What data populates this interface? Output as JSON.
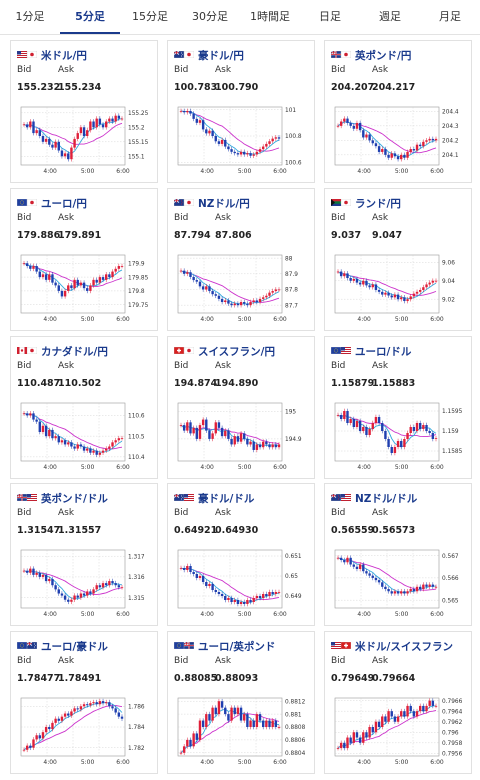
{
  "tabs": [
    {
      "label": "1分足",
      "active": false
    },
    {
      "label": "5分足",
      "active": true
    },
    {
      "label": "15分足",
      "active": false
    },
    {
      "label": "30分足",
      "active": false
    },
    {
      "label": "1時間足",
      "active": false
    },
    {
      "label": "日足",
      "active": false
    },
    {
      "label": "週足",
      "active": false
    },
    {
      "label": "月足",
      "active": false
    }
  ],
  "labels": {
    "bid": "Bid",
    "ask": "Ask"
  },
  "time_labels": [
    "4:00",
    "5:00",
    "6:00"
  ],
  "colors": {
    "up": "#e0203a",
    "down": "#1f3fb0",
    "ma_long": "#cc33cc",
    "ma_short": "#33aadd",
    "title": "#1a3a8c"
  },
  "pairs": [
    {
      "name": "米ドル/円",
      "bid": "155.232",
      "ask": "155.234",
      "flags": [
        "us",
        "jp"
      ],
      "yticks": [
        "155.25",
        "155.2",
        "155.15",
        "155.1"
      ],
      "range": [
        155.07,
        155.27
      ],
      "series": [
        155.21,
        155.2,
        155.22,
        155.18,
        155.19,
        155.17,
        155.15,
        155.16,
        155.14,
        155.13,
        155.15,
        155.12,
        155.1,
        155.11,
        155.09,
        155.13,
        155.16,
        155.18,
        155.2,
        155.17,
        155.19,
        155.22,
        155.2,
        155.23,
        155.21,
        155.2,
        155.22,
        155.23,
        155.22,
        155.24,
        155.23,
        155.23
      ]
    },
    {
      "name": "豪ドル/円",
      "bid": "100.783",
      "ask": "100.790",
      "flags": [
        "au",
        "jp"
      ],
      "yticks": [
        "101",
        "100.8",
        "100.6"
      ],
      "range": [
        100.58,
        101.02
      ],
      "series": [
        100.99,
        100.98,
        100.99,
        100.97,
        100.93,
        100.9,
        100.92,
        100.85,
        100.82,
        100.84,
        100.8,
        100.76,
        100.74,
        100.77,
        100.72,
        100.7,
        100.68,
        100.67,
        100.66,
        100.68,
        100.66,
        100.67,
        100.65,
        100.66,
        100.68,
        100.7,
        100.72,
        100.74,
        100.76,
        100.78,
        100.79,
        100.78
      ]
    },
    {
      "name": "英ポンド/円",
      "bid": "204.207",
      "ask": "204.217",
      "flags": [
        "gb",
        "jp"
      ],
      "yticks": [
        "204.4",
        "204.3",
        "204.2",
        "204.1"
      ],
      "range": [
        204.03,
        204.43
      ],
      "series": [
        204.3,
        204.33,
        204.35,
        204.32,
        204.3,
        204.28,
        204.32,
        204.27,
        204.22,
        204.24,
        204.2,
        204.18,
        204.16,
        204.12,
        204.14,
        204.1,
        204.08,
        204.11,
        204.09,
        204.07,
        204.1,
        204.08,
        204.12,
        204.14,
        204.13,
        204.17,
        204.16,
        204.19,
        204.2,
        204.21,
        204.2,
        204.21
      ]
    },
    {
      "name": "ユーロ/円",
      "bid": "179.886",
      "ask": "179.891",
      "flags": [
        "eu",
        "jp"
      ],
      "yticks": [
        "179.9",
        "179.85",
        "179.8",
        "179.75"
      ],
      "range": [
        179.72,
        179.93
      ],
      "series": [
        179.9,
        179.89,
        179.88,
        179.89,
        179.87,
        179.85,
        179.86,
        179.84,
        179.86,
        179.83,
        179.82,
        179.8,
        179.78,
        179.8,
        179.82,
        179.81,
        179.84,
        179.82,
        179.83,
        179.81,
        179.8,
        179.82,
        179.84,
        179.83,
        179.85,
        179.84,
        179.86,
        179.85,
        179.87,
        179.88,
        179.89,
        179.89
      ]
    },
    {
      "name": "NZドル/円",
      "bid": "87.794",
      "ask": "87.806",
      "flags": [
        "nz",
        "jp"
      ],
      "yticks": [
        "88",
        "87.9",
        "87.8",
        "87.7"
      ],
      "range": [
        87.65,
        88.02
      ],
      "series": [
        87.92,
        87.9,
        87.91,
        87.88,
        87.86,
        87.85,
        87.82,
        87.8,
        87.82,
        87.79,
        87.77,
        87.76,
        87.74,
        87.72,
        87.73,
        87.71,
        87.7,
        87.71,
        87.7,
        87.72,
        87.71,
        87.7,
        87.72,
        87.73,
        87.72,
        87.74,
        87.75,
        87.76,
        87.78,
        87.79,
        87.8,
        87.8
      ]
    },
    {
      "name": "ランド/円",
      "bid": "9.037",
      "ask": "9.047",
      "flags": [
        "za",
        "jp"
      ],
      "yticks": [
        "9.06",
        "9.04",
        "9.02"
      ],
      "range": [
        9.005,
        9.068
      ],
      "series": [
        9.05,
        9.045,
        9.048,
        9.043,
        9.04,
        9.042,
        9.038,
        9.036,
        9.04,
        9.035,
        9.033,
        9.036,
        9.03,
        9.028,
        9.025,
        9.027,
        9.024,
        9.022,
        9.025,
        9.02,
        9.022,
        9.018,
        9.02,
        9.023,
        9.026,
        9.028,
        9.03,
        9.033,
        9.036,
        9.038,
        9.04,
        9.04
      ]
    },
    {
      "name": "カナダドル/円",
      "bid": "110.487",
      "ask": "110.502",
      "flags": [
        "ca",
        "jp"
      ],
      "yticks": [
        "110.6",
        "110.5",
        "110.4"
      ],
      "range": [
        110.38,
        110.66
      ],
      "series": [
        110.61,
        110.6,
        110.61,
        110.58,
        110.57,
        110.52,
        110.55,
        110.5,
        110.53,
        110.49,
        110.5,
        110.47,
        110.48,
        110.46,
        110.47,
        110.45,
        110.44,
        110.46,
        110.45,
        110.43,
        110.44,
        110.42,
        110.43,
        110.41,
        110.42,
        110.43,
        110.44,
        110.45,
        110.47,
        110.48,
        110.49,
        110.49
      ]
    },
    {
      "name": "スイスフラン/円",
      "bid": "194.874",
      "ask": "194.890",
      "flags": [
        "ch",
        "jp"
      ],
      "yticks": [
        "195",
        "194.9"
      ],
      "range": [
        194.82,
        195.03
      ],
      "series": [
        194.95,
        194.93,
        194.96,
        194.92,
        194.94,
        194.9,
        194.95,
        194.97,
        194.93,
        194.9,
        194.92,
        194.96,
        194.94,
        194.91,
        194.93,
        194.9,
        194.88,
        194.91,
        194.89,
        194.92,
        194.9,
        194.88,
        194.89,
        194.86,
        194.88,
        194.87,
        194.89,
        194.88,
        194.87,
        194.88,
        194.87,
        194.88
      ]
    },
    {
      "name": "ユーロ/ドル",
      "bid": "1.15879",
      "ask": "1.15883",
      "flags": [
        "eu",
        "us"
      ],
      "yticks": [
        "1.1595",
        "1.159",
        "1.1585"
      ],
      "range": [
        1.15825,
        1.1597
      ],
      "series": [
        1.1594,
        1.1593,
        1.1595,
        1.1592,
        1.1593,
        1.1591,
        1.15925,
        1.159,
        1.1591,
        1.1589,
        1.15905,
        1.1592,
        1.15935,
        1.1592,
        1.159,
        1.1588,
        1.1586,
        1.15845,
        1.1586,
        1.15875,
        1.1586,
        1.1588,
        1.15895,
        1.1591,
        1.159,
        1.1592,
        1.15905,
        1.15915,
        1.159,
        1.15895,
        1.1588,
        1.15882
      ]
    },
    {
      "name": "英ポンド/ドル",
      "bid": "1.31547",
      "ask": "1.31557",
      "flags": [
        "gb",
        "us"
      ],
      "yticks": [
        "1.317",
        "1.316",
        "1.315"
      ],
      "range": [
        1.3145,
        1.3173
      ],
      "series": [
        1.3163,
        1.3162,
        1.3164,
        1.3161,
        1.3162,
        1.316,
        1.3161,
        1.3158,
        1.3159,
        1.3156,
        1.3154,
        1.3152,
        1.3151,
        1.3149,
        1.3148,
        1.3149,
        1.3151,
        1.315,
        1.3152,
        1.3151,
        1.3153,
        1.3152,
        1.3154,
        1.3156,
        1.3155,
        1.3157,
        1.3156,
        1.3158,
        1.3157,
        1.3156,
        1.3155,
        1.3155
      ]
    },
    {
      "name": "豪ドル/ドル",
      "bid": "0.64921",
      "ask": "0.64930",
      "flags": [
        "au",
        "us"
      ],
      "yticks": [
        "0.651",
        "0.65",
        "0.649"
      ],
      "range": [
        0.6484,
        0.6513
      ],
      "series": [
        0.6504,
        0.6503,
        0.6505,
        0.6502,
        0.6501,
        0.6499,
        0.65,
        0.6497,
        0.6495,
        0.6496,
        0.6493,
        0.6492,
        0.6491,
        0.649,
        0.6488,
        0.6489,
        0.6487,
        0.6488,
        0.6486,
        0.6487,
        0.6486,
        0.6488,
        0.6487,
        0.6489,
        0.649,
        0.6489,
        0.6491,
        0.649,
        0.6492,
        0.6491,
        0.6492,
        0.6492
      ]
    },
    {
      "name": "NZドル/ドル",
      "bid": "0.56559",
      "ask": "0.56573",
      "flags": [
        "nz",
        "us"
      ],
      "yticks": [
        "0.567",
        "0.566",
        "0.565"
      ],
      "range": [
        0.56465,
        0.56725
      ],
      "series": [
        0.5669,
        0.5668,
        0.5667,
        0.5669,
        0.5666,
        0.5665,
        0.5664,
        0.5666,
        0.5663,
        0.5662,
        0.5661,
        0.566,
        0.5659,
        0.5658,
        0.5656,
        0.5655,
        0.5654,
        0.5653,
        0.5654,
        0.5653,
        0.5654,
        0.5653,
        0.5654,
        0.5655,
        0.5654,
        0.5656,
        0.5655,
        0.5657,
        0.5656,
        0.5657,
        0.5656,
        0.5656
      ]
    },
    {
      "name": "ユーロ/豪ドル",
      "bid": "1.78477",
      "ask": "1.78491",
      "flags": [
        "eu",
        "au"
      ],
      "yticks": [
        "1.786",
        "1.784",
        "1.782"
      ],
      "range": [
        1.7812,
        1.7868
      ],
      "series": [
        1.7818,
        1.7822,
        1.782,
        1.7828,
        1.7832,
        1.7829,
        1.7835,
        1.784,
        1.7838,
        1.7844,
        1.7848,
        1.7846,
        1.785,
        1.7853,
        1.7851,
        1.7855,
        1.7858,
        1.7857,
        1.786,
        1.7862,
        1.7861,
        1.7863,
        1.7864,
        1.7862,
        1.7865,
        1.7863,
        1.7864,
        1.786,
        1.7858,
        1.7854,
        1.785,
        1.7848
      ]
    },
    {
      "name": "ユーロ/英ポンド",
      "bid": "0.88085",
      "ask": "0.88093",
      "flags": [
        "eu",
        "gb"
      ],
      "yticks": [
        "0.8812",
        "0.881",
        "0.8808",
        "0.8806",
        "0.8804"
      ],
      "range": [
        0.88035,
        0.88125
      ],
      "series": [
        0.8804,
        0.8805,
        0.8806,
        0.8805,
        0.8807,
        0.8806,
        0.8809,
        0.8808,
        0.881,
        0.8809,
        0.8811,
        0.881,
        0.8812,
        0.8811,
        0.881,
        0.8809,
        0.8811,
        0.881,
        0.8811,
        0.8809,
        0.881,
        0.8808,
        0.8809,
        0.8808,
        0.881,
        0.8809,
        0.8808,
        0.8809,
        0.8808,
        0.8809,
        0.8808,
        0.8808
      ]
    },
    {
      "name": "米ドル/スイスフラン",
      "bid": "0.79649",
      "ask": "0.79664",
      "flags": [
        "us",
        "ch"
      ],
      "yticks": [
        "0.7966",
        "0.7964",
        "0.7962",
        "0.796",
        "0.7958",
        "0.7956"
      ],
      "range": [
        0.79555,
        0.79665
      ],
      "series": [
        0.7957,
        0.7958,
        0.7957,
        0.7959,
        0.7958,
        0.796,
        0.7959,
        0.7958,
        0.796,
        0.7959,
        0.7961,
        0.796,
        0.7962,
        0.7961,
        0.7963,
        0.7962,
        0.7964,
        0.7963,
        0.7962,
        0.7963,
        0.7964,
        0.7963,
        0.7965,
        0.7964,
        0.7963,
        0.7964,
        0.7965,
        0.7964,
        0.7965,
        0.7966,
        0.7965,
        0.7965
      ]
    }
  ]
}
